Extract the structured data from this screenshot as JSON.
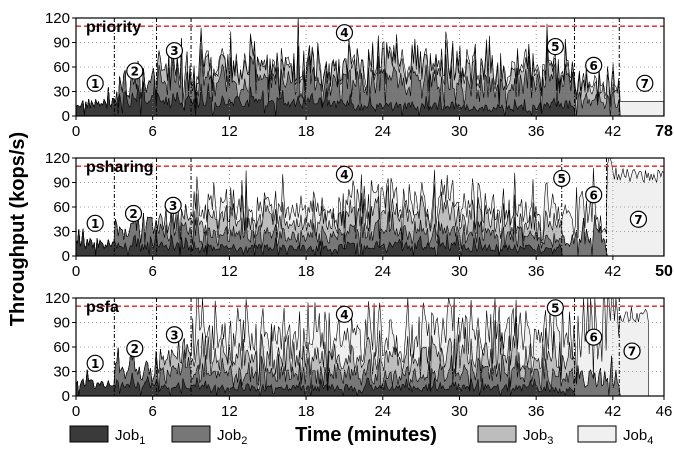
{
  "chart_data": {
    "type": "area",
    "ylabel": "Throughput (kops/s)",
    "xlabel": "Time (minutes)",
    "legend": {
      "placement": "bottom",
      "items": [
        {
          "base": "Job",
          "sub": "1",
          "color": "#3a3a3a"
        },
        {
          "base": "Job",
          "sub": "2",
          "color": "#777777"
        },
        {
          "base": "Job",
          "sub": "3",
          "color": "#bdbdbd"
        },
        {
          "base": "Job",
          "sub": "4",
          "color": "#f0f0f0"
        }
      ]
    },
    "capacity_line": {
      "y": 110,
      "color": "#e02020",
      "style": "dashed"
    },
    "grid": true,
    "phase_markers": [
      "1",
      "2",
      "3",
      "4",
      "5",
      "6",
      "7"
    ],
    "panels": [
      {
        "title": "priority",
        "xlim": [
          0,
          78
        ],
        "x_ticks": [
          "0",
          "6",
          "12",
          "18",
          "24",
          "30",
          "36",
          "42"
        ],
        "end_label": "78",
        "ylim": [
          0,
          120
        ],
        "y_ticks": [
          "0",
          "30",
          "60",
          "90",
          "120"
        ],
        "phase_boundaries": [
          3,
          6.3,
          9,
          39,
          42.5
        ],
        "phase_label_positions": [
          [
            1.5,
            40
          ],
          [
            4.6,
            55
          ],
          [
            7.7,
            80
          ],
          [
            21,
            102
          ],
          [
            37.5,
            85
          ],
          [
            40.5,
            62
          ],
          [
            44.5,
            40
          ]
        ],
        "segments": [
          {
            "x": 0,
            "job1": 15,
            "job2": 0,
            "job3": 0,
            "job4": 0
          },
          {
            "x": 3,
            "job1": 20,
            "job2": 22,
            "job3": 0,
            "job4": 0
          },
          {
            "x": 6.3,
            "job1": 18,
            "job2": 30,
            "job3": 12,
            "job4": 0
          },
          {
            "x": 9,
            "job1": 17,
            "job2": 25,
            "job3": 16,
            "job4": 5
          },
          {
            "x": 21,
            "job1": 12,
            "job2": 30,
            "job3": 22,
            "job4": 6
          },
          {
            "x": 30,
            "job1": 10,
            "job2": 28,
            "job3": 18,
            "job4": 6
          },
          {
            "x": 36,
            "job1": 14,
            "job2": 30,
            "job3": 14,
            "job4": 5
          },
          {
            "x": 39,
            "job1": 0,
            "job2": 20,
            "job3": 16,
            "job4": 6
          },
          {
            "x": 42.5,
            "job1": 0,
            "job2": 0,
            "job3": 0,
            "job4": 18
          },
          {
            "x": 78,
            "job1": 0,
            "job2": 0,
            "job3": 0,
            "job4": 18
          }
        ]
      },
      {
        "title": "psharing",
        "xlim": [
          0,
          50
        ],
        "x_ticks": [
          "0",
          "6",
          "12",
          "18",
          "24",
          "30",
          "36",
          "42"
        ],
        "end_label": "50",
        "ylim": [
          0,
          120
        ],
        "y_ticks": [
          "0",
          "30",
          "60",
          "90",
          "120"
        ],
        "phase_boundaries": [
          3,
          6.3,
          9,
          38,
          41.5
        ],
        "phase_label_positions": [
          [
            1.5,
            40
          ],
          [
            4.5,
            52
          ],
          [
            7.6,
            62
          ],
          [
            21,
            100
          ],
          [
            38,
            95
          ],
          [
            40.5,
            75
          ],
          [
            44,
            45
          ]
        ],
        "segments": [
          {
            "x": 0,
            "job1": 15,
            "job2": 0,
            "job3": 0,
            "job4": 0
          },
          {
            "x": 3,
            "job1": 14,
            "job2": 20,
            "job3": 0,
            "job4": 0
          },
          {
            "x": 6.3,
            "job1": 12,
            "job2": 18,
            "job3": 14,
            "job4": 0
          },
          {
            "x": 9,
            "job1": 10,
            "job2": 16,
            "job3": 18,
            "job4": 14
          },
          {
            "x": 21,
            "job1": 12,
            "job2": 18,
            "job3": 20,
            "job4": 18
          },
          {
            "x": 30,
            "job1": 10,
            "job2": 16,
            "job3": 18,
            "job4": 16
          },
          {
            "x": 36,
            "job1": 8,
            "job2": 14,
            "job3": 16,
            "job4": 18
          },
          {
            "x": 38,
            "job1": 0,
            "job2": 22,
            "job3": 0,
            "job4": 30
          },
          {
            "x": 41.5,
            "job1": 0,
            "job2": 0,
            "job3": 0,
            "job4": 100
          },
          {
            "x": 50,
            "job1": 0,
            "job2": 0,
            "job3": 0,
            "job4": 100
          }
        ]
      },
      {
        "title": "psfa",
        "xlim": [
          0,
          46
        ],
        "x_ticks": [
          "0",
          "6",
          "12",
          "18",
          "24",
          "30",
          "36",
          "42",
          "46"
        ],
        "end_label": "",
        "ylim": [
          0,
          120
        ],
        "y_ticks": [
          "0",
          "30",
          "60",
          "90",
          "120"
        ],
        "phase_boundaries": [
          3,
          6.3,
          9,
          39,
          42.5
        ],
        "phase_label_positions": [
          [
            1.5,
            40
          ],
          [
            4.6,
            58
          ],
          [
            7.7,
            75
          ],
          [
            21,
            100
          ],
          [
            37.5,
            108
          ],
          [
            40.5,
            72
          ],
          [
            43.5,
            55
          ]
        ],
        "segments": [
          {
            "x": 0,
            "job1": 15,
            "job2": 0,
            "job3": 0,
            "job4": 0
          },
          {
            "x": 3,
            "job1": 14,
            "job2": 18,
            "job3": 0,
            "job4": 0
          },
          {
            "x": 6.3,
            "job1": 12,
            "job2": 18,
            "job3": 18,
            "job4": 0
          },
          {
            "x": 9,
            "job1": 10,
            "job2": 18,
            "job3": 20,
            "job4": 28
          },
          {
            "x": 21,
            "job1": 10,
            "job2": 16,
            "job3": 24,
            "job4": 30
          },
          {
            "x": 30,
            "job1": 10,
            "job2": 18,
            "job3": 22,
            "job4": 28
          },
          {
            "x": 36,
            "job1": 8,
            "job2": 18,
            "job3": 24,
            "job4": 32
          },
          {
            "x": 39,
            "job1": 0,
            "job2": 22,
            "job3": 0,
            "job4": 70
          },
          {
            "x": 42.5,
            "job1": 0,
            "job2": 0,
            "job3": 0,
            "job4": 100
          },
          {
            "x": 44.8,
            "job1": 0,
            "job2": 0,
            "job3": 0,
            "job4": 0
          }
        ]
      }
    ]
  }
}
